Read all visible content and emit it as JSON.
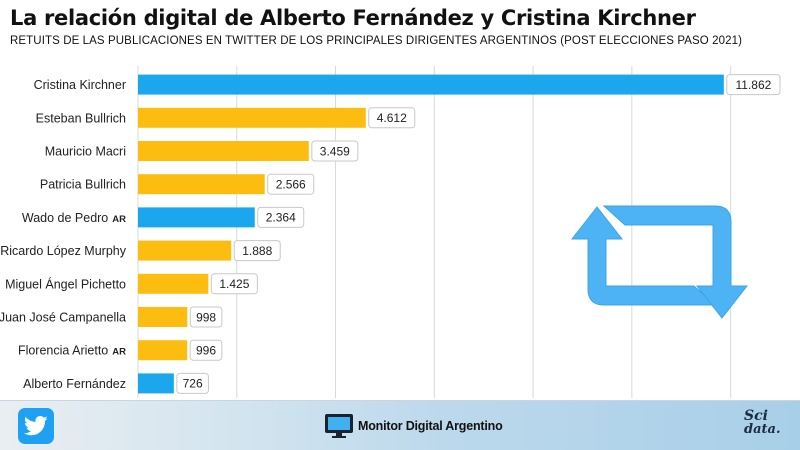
{
  "header": {
    "title": "La relación digital de Alberto Fernández y Cristina Kirchner",
    "subtitle": "RETUITS DE LAS PUBLICACIONES EN TWITTER DE LOS PRINCIPALES DIRIGENTES ARGENTINOS (POST ELECCIONES PASO 2021)"
  },
  "chart_data": {
    "type": "bar",
    "orientation": "horizontal",
    "title": "La relación digital de Alberto Fernández y Cristina Kirchner",
    "subtitle": "RETUITS DE LAS PUBLICACIONES EN TWITTER DE LOS PRINCIPALES DIRIGENTES ARGENTINOS (POST ELECCIONES PASO 2021)",
    "xlabel": "",
    "ylabel": "",
    "xlim": [
      0,
      13000
    ],
    "grid": true,
    "legend": "none",
    "categories": [
      "Cristina Kirchner",
      "Esteban Bullrich",
      "Mauricio Macri",
      "Patricia Bullrich",
      "Wado de Pedro",
      "Ricardo López Murphy",
      "Miguel Ángel Pichetto",
      "Juan José Campanella",
      "Florencia Arietto",
      "Alberto Fernández"
    ],
    "category_suffixes": [
      "",
      "",
      "",
      "",
      "AR",
      "",
      "",
      "",
      "AR",
      ""
    ],
    "values": [
      11862,
      4612,
      3459,
      2566,
      2364,
      1888,
      1425,
      998,
      996,
      726
    ],
    "value_labels": [
      "11.862",
      "4.612",
      "3.459",
      "2.566",
      "2.364",
      "1.888",
      "1.425",
      "998",
      "996",
      "726"
    ],
    "bar_colors": [
      "#1aa7ee",
      "#fdbd10",
      "#fdbd10",
      "#fdbd10",
      "#1aa7ee",
      "#fdbd10",
      "#fdbd10",
      "#fdbd10",
      "#fdbd10",
      "#1aa7ee"
    ]
  },
  "colors": {
    "ruling_party": "#1aa7ee",
    "opposition": "#fdbd10",
    "retweet_icon": "#4db3f5",
    "twitter": "#1da1f2"
  },
  "footer": {
    "icon": "twitter-icon",
    "brand_name": "Monitor Digital Argentino",
    "logo_line1": "Sci",
    "logo_line2": "data."
  }
}
